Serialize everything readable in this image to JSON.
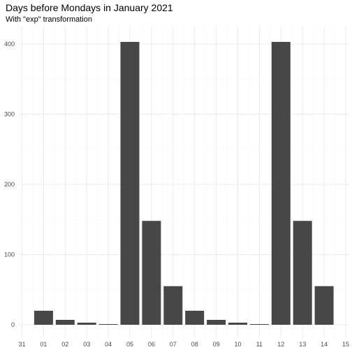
{
  "chart_data": {
    "type": "bar",
    "title": "Days before Mondays in January 2021",
    "subtitle": "With \"exp\" transformation",
    "xlabel": "",
    "ylabel": "",
    "x_tick_labels": [
      "31",
      "01",
      "02",
      "03",
      "04",
      "05",
      "06",
      "07",
      "08",
      "09",
      "10",
      "11",
      "12",
      "13",
      "14",
      "15"
    ],
    "categories": [
      "01",
      "02",
      "03",
      "04",
      "05",
      "06",
      "07",
      "08",
      "09",
      "10",
      "11",
      "12",
      "13",
      "14"
    ],
    "values": [
      20,
      7,
      3,
      1,
      403,
      148,
      55,
      20,
      7,
      3,
      1,
      403,
      148,
      55
    ],
    "y_ticks": [
      0,
      100,
      200,
      300,
      400
    ],
    "ylim": [
      0,
      420
    ],
    "grid": true,
    "legend": "none",
    "colors": {
      "bar": "#474747",
      "grid_major": "#ebebeb",
      "grid_minor": "#f5f5f5",
      "tick_text": "#4d4d4d"
    }
  }
}
